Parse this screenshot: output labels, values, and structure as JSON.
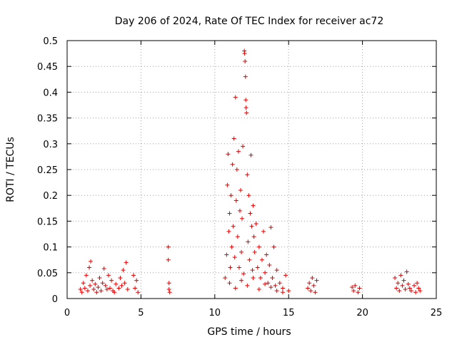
{
  "chart_data": {
    "type": "scatter",
    "title": "Day 206 of 2024, Rate Of TEC Index for receiver ac72",
    "xlabel": "GPS time / hours",
    "ylabel": "ROTI / TECUs",
    "xlim": [
      0,
      25
    ],
    "ylim": [
      0,
      0.5
    ],
    "xticks": [
      0,
      5,
      10,
      15,
      20,
      25
    ],
    "xtick_labels": [
      "0",
      "5",
      "10",
      "15",
      "20",
      "25"
    ],
    "yticks": [
      0,
      0.05,
      0.1,
      0.15,
      0.2,
      0.25,
      0.3,
      0.35,
      0.4,
      0.45,
      0.5
    ],
    "ytick_labels": [
      "0",
      "0.05",
      "0.1",
      "0.15",
      "0.2",
      "0.25",
      "0.3",
      "0.35",
      "0.4",
      "0.45",
      "0.5"
    ],
    "grid": true,
    "marker": "+",
    "color": "#e00000",
    "series": [
      {
        "name": "ROTI",
        "points": [
          [
            0.9,
            0.018
          ],
          [
            1.0,
            0.012
          ],
          [
            1.1,
            0.03
          ],
          [
            1.2,
            0.02
          ],
          [
            1.3,
            0.045
          ],
          [
            1.4,
            0.015
          ],
          [
            1.5,
            0.06
          ],
          [
            1.55,
            0.025
          ],
          [
            1.6,
            0.072
          ],
          [
            1.7,
            0.035
          ],
          [
            1.8,
            0.018
          ],
          [
            1.9,
            0.028
          ],
          [
            2.0,
            0.012
          ],
          [
            2.1,
            0.022
          ],
          [
            2.2,
            0.04
          ],
          [
            2.3,
            0.015
          ],
          [
            2.4,
            0.03
          ],
          [
            2.5,
            0.058
          ],
          [
            2.6,
            0.025
          ],
          [
            2.7,
            0.018
          ],
          [
            2.8,
            0.045
          ],
          [
            2.9,
            0.02
          ],
          [
            3.0,
            0.035
          ],
          [
            3.1,
            0.015
          ],
          [
            3.2,
            0.012
          ],
          [
            3.3,
            0.028
          ],
          [
            3.5,
            0.02
          ],
          [
            3.6,
            0.04
          ],
          [
            3.7,
            0.025
          ],
          [
            3.8,
            0.055
          ],
          [
            3.9,
            0.03
          ],
          [
            4.0,
            0.07
          ],
          [
            4.1,
            0.018
          ],
          [
            4.5,
            0.045
          ],
          [
            4.6,
            0.02
          ],
          [
            4.7,
            0.035
          ],
          [
            4.8,
            0.012
          ],
          [
            6.85,
            0.1
          ],
          [
            6.85,
            0.075
          ],
          [
            6.9,
            0.03
          ],
          [
            6.9,
            0.018
          ],
          [
            6.95,
            0.012
          ],
          [
            10.7,
            0.04
          ],
          [
            10.8,
            0.085
          ],
          [
            10.85,
            0.22
          ],
          [
            10.9,
            0.28
          ],
          [
            10.95,
            0.13
          ],
          [
            11.0,
            0.165
          ],
          [
            11.05,
            0.06
          ],
          [
            11.1,
            0.2
          ],
          [
            11.15,
            0.1
          ],
          [
            11.2,
            0.26
          ],
          [
            11.25,
            0.14
          ],
          [
            11.3,
            0.31
          ],
          [
            11.35,
            0.08
          ],
          [
            11.4,
            0.39
          ],
          [
            11.45,
            0.19
          ],
          [
            11.5,
            0.25
          ],
          [
            11.55,
            0.12
          ],
          [
            11.6,
            0.285
          ],
          [
            11.65,
            0.06
          ],
          [
            11.7,
            0.17
          ],
          [
            11.75,
            0.21
          ],
          [
            11.8,
            0.09
          ],
          [
            11.85,
            0.155
          ],
          [
            11.9,
            0.295
          ],
          [
            11.95,
            0.048
          ],
          [
            12.0,
            0.48
          ],
          [
            12.02,
            0.475
          ],
          [
            12.05,
            0.46
          ],
          [
            12.08,
            0.43
          ],
          [
            12.1,
            0.385
          ],
          [
            12.12,
            0.37
          ],
          [
            12.15,
            0.36
          ],
          [
            12.2,
            0.24
          ],
          [
            12.25,
            0.11
          ],
          [
            12.3,
            0.2
          ],
          [
            12.35,
            0.075
          ],
          [
            12.4,
            0.165
          ],
          [
            12.45,
            0.278
          ],
          [
            12.5,
            0.14
          ],
          [
            12.55,
            0.055
          ],
          [
            12.6,
            0.18
          ],
          [
            12.65,
            0.12
          ],
          [
            12.7,
            0.09
          ],
          [
            12.8,
            0.145
          ],
          [
            12.9,
            0.06
          ],
          [
            13.0,
            0.1
          ],
          [
            13.1,
            0.04
          ],
          [
            13.2,
            0.075
          ],
          [
            13.3,
            0.13
          ],
          [
            13.4,
            0.05
          ],
          [
            13.5,
            0.085
          ],
          [
            13.6,
            0.03
          ],
          [
            13.7,
            0.065
          ],
          [
            13.8,
            0.138
          ],
          [
            13.9,
            0.04
          ],
          [
            14.0,
            0.1
          ],
          [
            14.1,
            0.025
          ],
          [
            14.2,
            0.055
          ],
          [
            14.4,
            0.03
          ],
          [
            14.6,
            0.02
          ],
          [
            14.8,
            0.045
          ],
          [
            15.0,
            0.015
          ],
          [
            11.0,
            0.03
          ],
          [
            11.4,
            0.02
          ],
          [
            11.8,
            0.035
          ],
          [
            12.2,
            0.025
          ],
          [
            12.6,
            0.04
          ],
          [
            13.0,
            0.018
          ],
          [
            13.4,
            0.028
          ],
          [
            13.8,
            0.022
          ],
          [
            14.2,
            0.015
          ],
          [
            14.6,
            0.012
          ],
          [
            16.3,
            0.02
          ],
          [
            16.4,
            0.03
          ],
          [
            16.5,
            0.015
          ],
          [
            16.6,
            0.04
          ],
          [
            16.7,
            0.025
          ],
          [
            16.8,
            0.012
          ],
          [
            16.9,
            0.035
          ],
          [
            19.3,
            0.022
          ],
          [
            19.4,
            0.015
          ],
          [
            19.5,
            0.025
          ],
          [
            19.7,
            0.012
          ],
          [
            19.8,
            0.02
          ],
          [
            22.2,
            0.04
          ],
          [
            22.3,
            0.02
          ],
          [
            22.4,
            0.03
          ],
          [
            22.5,
            0.015
          ],
          [
            22.6,
            0.045
          ],
          [
            22.7,
            0.025
          ],
          [
            22.8,
            0.035
          ],
          [
            22.9,
            0.018
          ],
          [
            23.0,
            0.052
          ],
          [
            23.1,
            0.028
          ],
          [
            23.2,
            0.02
          ],
          [
            23.3,
            0.015
          ],
          [
            23.5,
            0.025
          ],
          [
            23.6,
            0.012
          ],
          [
            23.7,
            0.03
          ],
          [
            23.8,
            0.02
          ],
          [
            23.9,
            0.015
          ]
        ]
      }
    ]
  }
}
